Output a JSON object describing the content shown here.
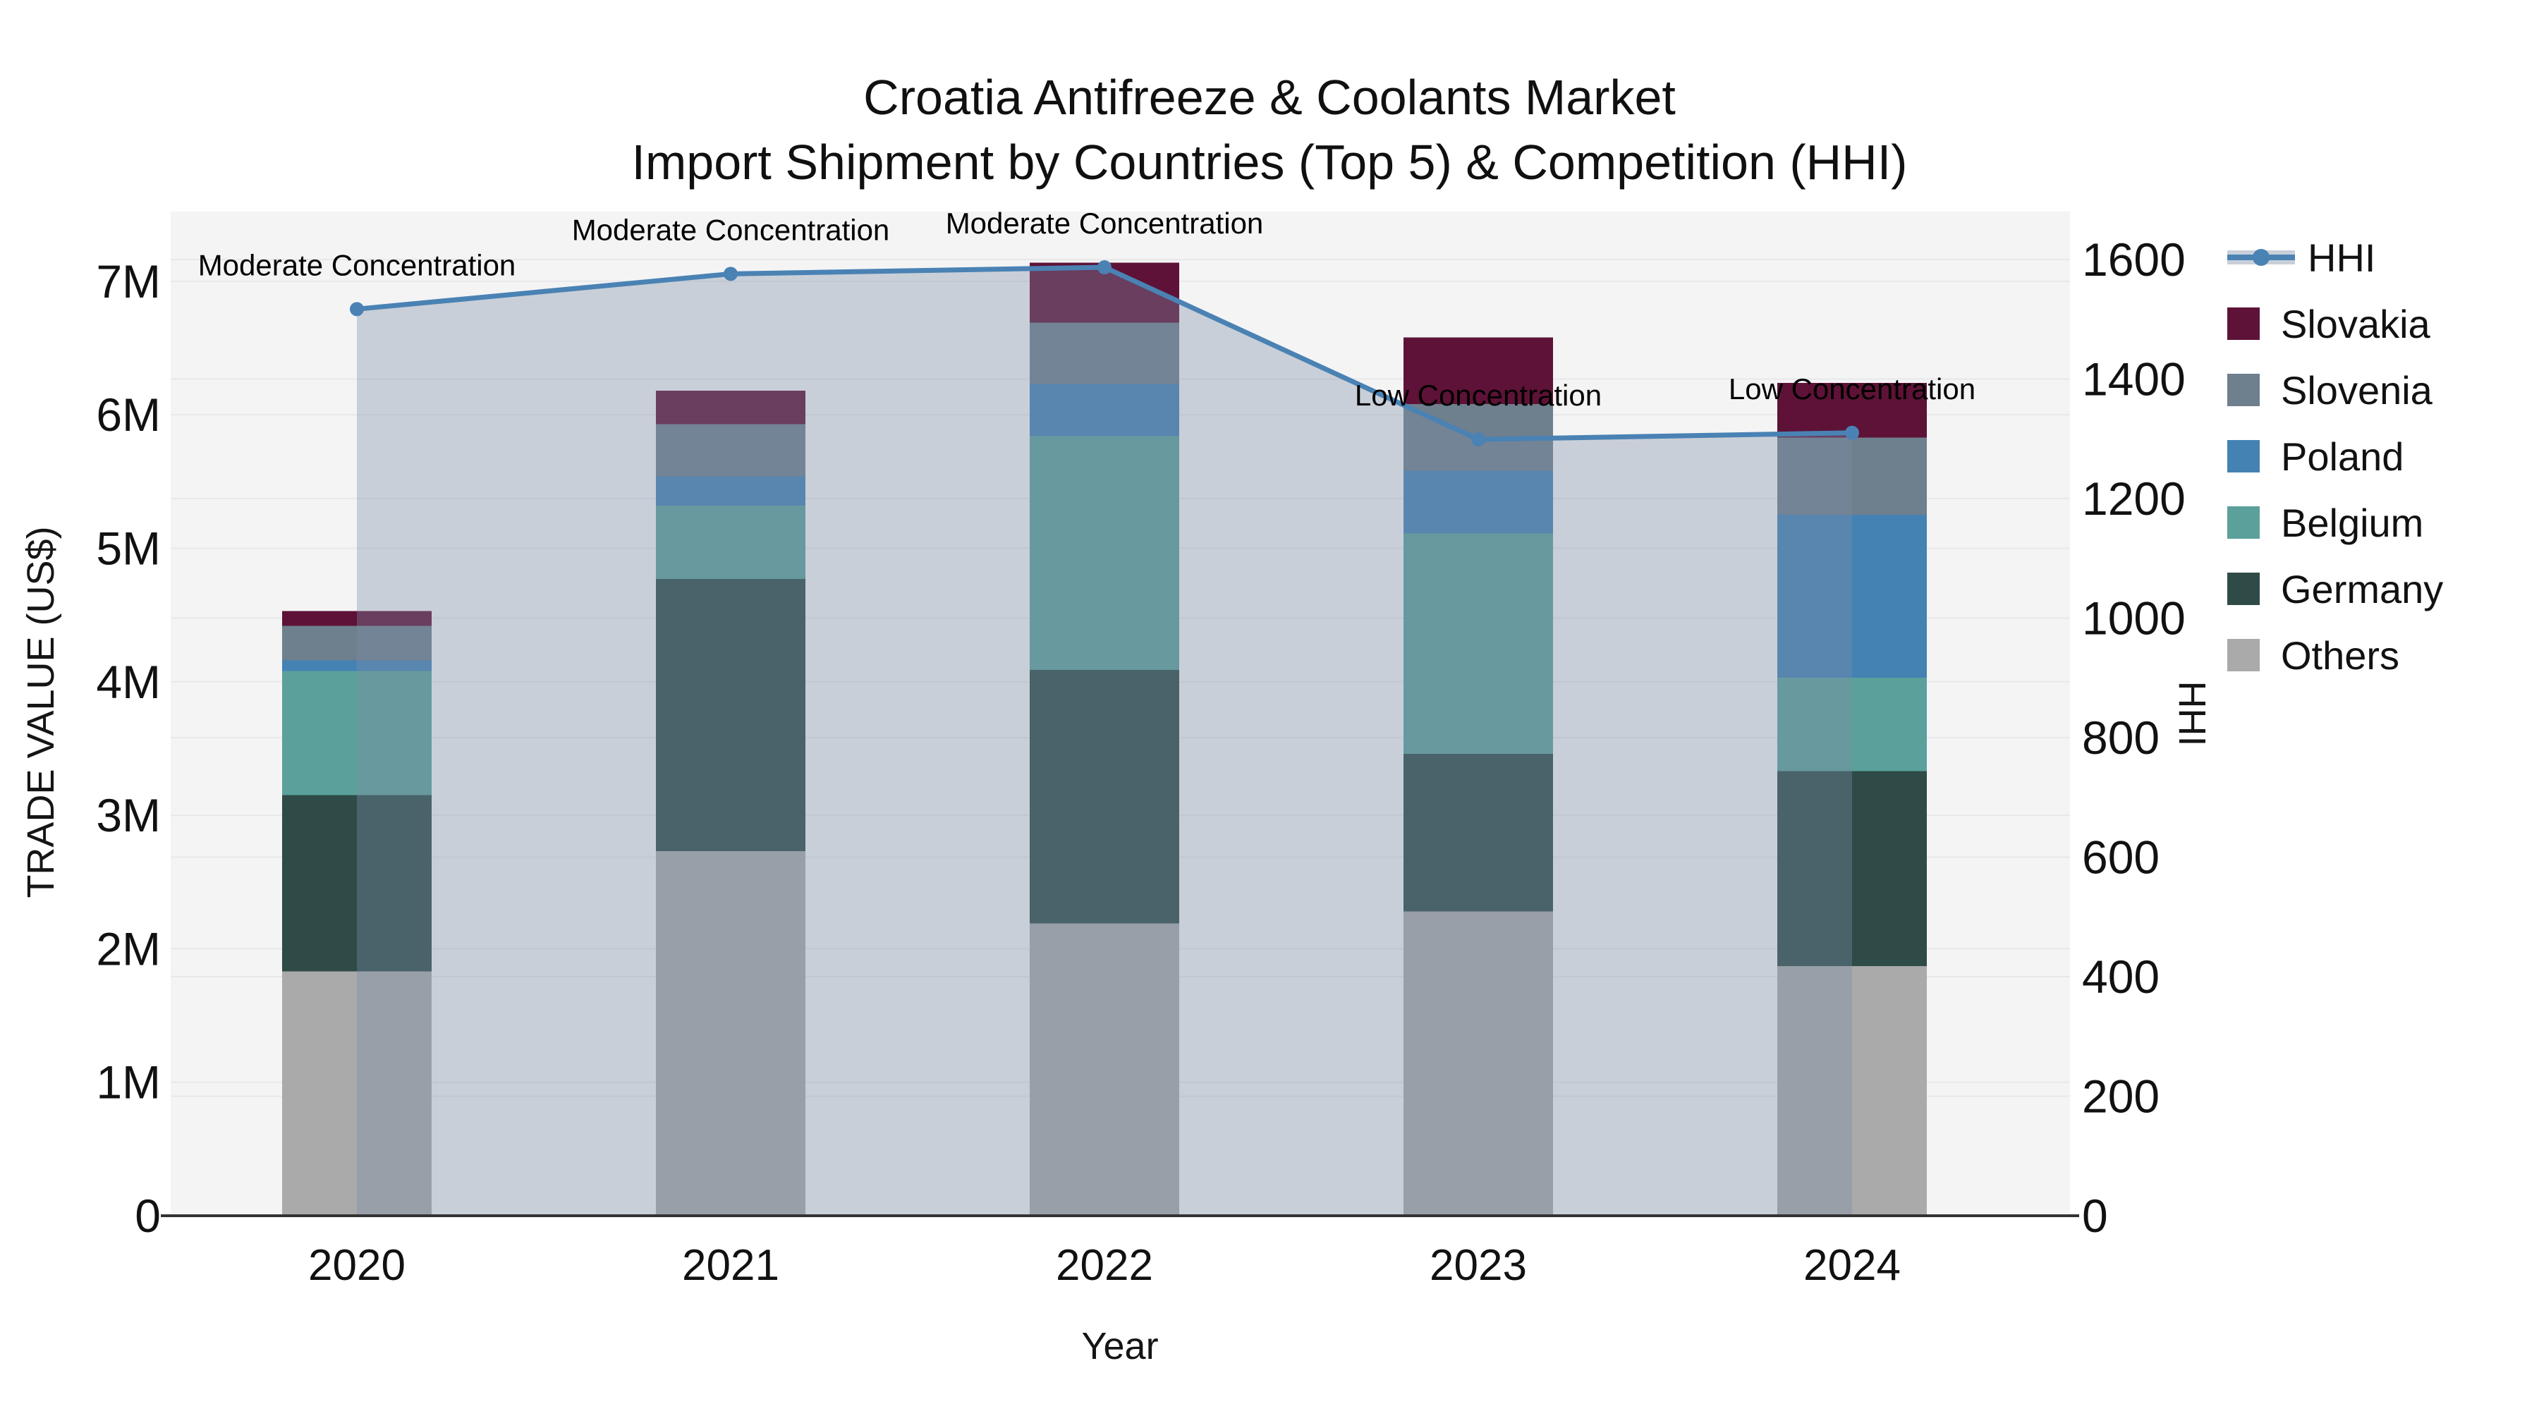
{
  "title": {
    "line1": "Croatia Antifreeze & Coolants Market",
    "line2": "Import Shipment by Countries (Top 5) & Competition (HHI)"
  },
  "chart_data": {
    "type": "combo-stacked-bar-line",
    "x_axis": {
      "title": "Year",
      "categories": [
        "2020",
        "2021",
        "2022",
        "2023",
        "2024"
      ]
    },
    "y_left": {
      "title": "TRADE VALUE (US$)",
      "tick_labels": [
        "0",
        "1M",
        "2M",
        "3M",
        "4M",
        "5M",
        "6M",
        "7M"
      ],
      "tick_values": [
        0,
        1,
        2,
        3,
        4,
        5,
        6,
        7
      ],
      "max": 7.5
    },
    "y_right": {
      "title": "HHI",
      "tick_labels": [
        "0",
        "200",
        "400",
        "600",
        "800",
        "1000",
        "1200",
        "1400",
        "1600"
      ],
      "tick_values": [
        0,
        200,
        400,
        600,
        800,
        1000,
        1200,
        1400,
        1600
      ],
      "max": 1600
    },
    "bar_series": [
      {
        "name": "Others",
        "color": "#a9aaa9",
        "values_musd": [
          1.83,
          2.73,
          2.19,
          2.28,
          1.87
        ]
      },
      {
        "name": "Germany",
        "color": "#2e4b48",
        "values_musd": [
          1.32,
          2.04,
          1.9,
          1.18,
          1.46
        ]
      },
      {
        "name": "Belgium",
        "color": "#5ba09b",
        "values_musd": [
          0.93,
          0.55,
          1.75,
          1.65,
          0.7
        ]
      },
      {
        "name": "Poland",
        "color": "#4482b4",
        "values_musd": [
          0.08,
          0.22,
          0.39,
          0.47,
          1.22
        ]
      },
      {
        "name": "Slovenia",
        "color": "#6e7f8e",
        "values_musd": [
          0.26,
          0.39,
          0.46,
          0.5,
          0.58
        ]
      },
      {
        "name": "Slovakia",
        "color": "#5e1237",
        "values_musd": [
          0.11,
          0.25,
          0.45,
          0.5,
          0.41
        ]
      }
    ],
    "line_series": {
      "name": "HHI",
      "color": "#4a82b4",
      "area_fill": "rgba(124,140,166,0.36)",
      "values": [
        1517,
        1576,
        1587,
        1299,
        1310
      ]
    },
    "annotations": [
      {
        "year": "2020",
        "text": "Moderate Concentration"
      },
      {
        "year": "2021",
        "text": "Moderate Concentration"
      },
      {
        "year": "2022",
        "text": "Moderate Concentration"
      },
      {
        "year": "2023",
        "text": "Low Concentration"
      },
      {
        "year": "2024",
        "text": "Low Concentration"
      }
    ],
    "legend": [
      {
        "label": "HHI",
        "type": "line",
        "color": "#4a82b4"
      },
      {
        "label": "Slovakia",
        "type": "box",
        "color": "#5e1237"
      },
      {
        "label": "Slovenia",
        "type": "box",
        "color": "#6e7f8e"
      },
      {
        "label": "Poland",
        "type": "box",
        "color": "#4482b4"
      },
      {
        "label": "Belgium",
        "type": "box",
        "color": "#5ba09b"
      },
      {
        "label": "Germany",
        "type": "box",
        "color": "#2e4b48"
      },
      {
        "label": "Others",
        "type": "box",
        "color": "#a9aaa9"
      }
    ],
    "colors": {
      "plot_bg": "#f4f4f5",
      "gridline": "#e8e8ea",
      "axis_line": "#333333",
      "text": "#111111"
    },
    "legend_position": "right",
    "grid": "on"
  }
}
